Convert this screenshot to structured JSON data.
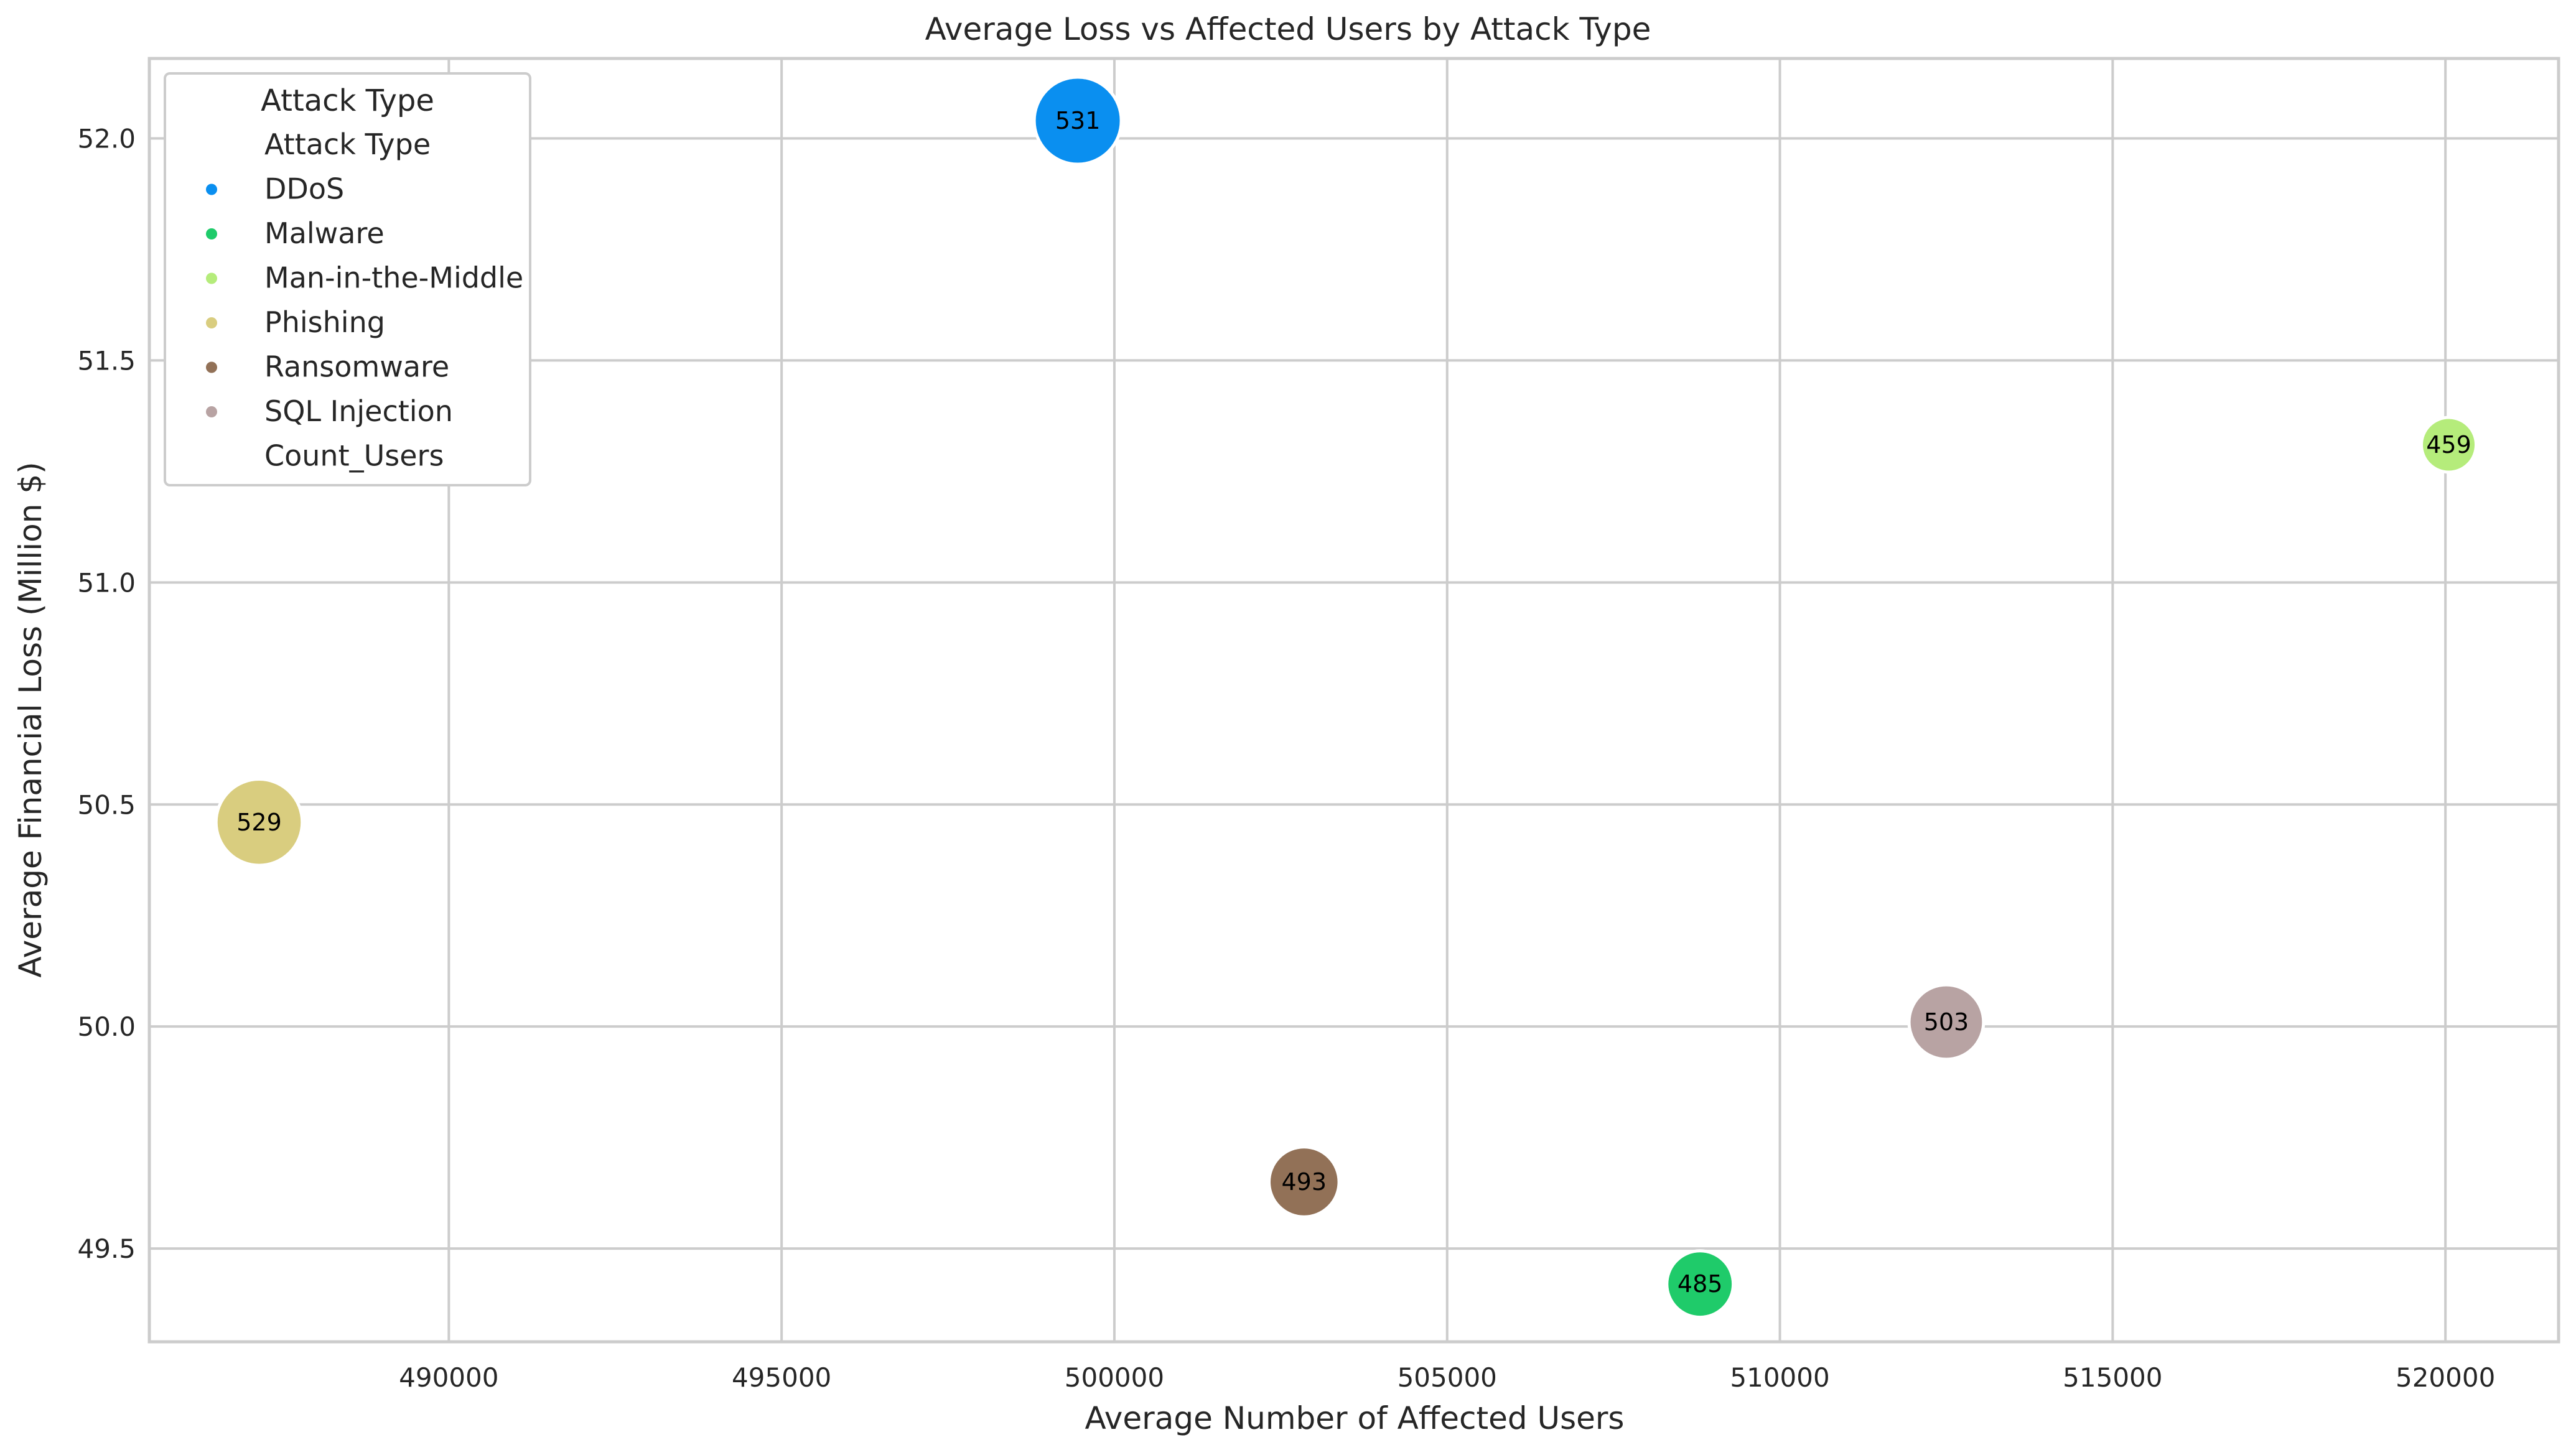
{
  "chart_data": {
    "type": "scatter",
    "title": "Average Loss vs Affected Users by Attack Type",
    "xlabel": "Average Number of Affected Users",
    "ylabel": "Average Financial Loss (Million $)",
    "xlim": [
      485500,
      521700
    ],
    "ylim": [
      49.29,
      52.18
    ],
    "xticks": [
      490000,
      495000,
      500000,
      505000,
      510000,
      515000,
      520000
    ],
    "xtick_labels": [
      "490000",
      "495000",
      "500000",
      "505000",
      "510000",
      "515000",
      "520000"
    ],
    "yticks": [
      49.5,
      50.0,
      50.5,
      51.0,
      51.5,
      52.0
    ],
    "ytick_labels": [
      "49.5",
      "50.0",
      "50.5",
      "51.0",
      "51.5",
      "52.0"
    ],
    "grid": true,
    "legend": {
      "title": "Attack Type",
      "placement": "top-left",
      "entries": [
        {
          "label": "Attack Type",
          "color": null
        },
        {
          "label": "DDoS",
          "color": "#0a8ff0"
        },
        {
          "label": "Malware",
          "color": "#1fcb6a"
        },
        {
          "label": "Man-in-the-Middle",
          "color": "#b5ec7b"
        },
        {
          "label": "Phishing",
          "color": "#d9cd7f"
        },
        {
          "label": "Ransomware",
          "color": "#927157"
        },
        {
          "label": "SQL Injection",
          "color": "#b8a3a3"
        },
        {
          "label": "Count_Users",
          "color": null
        }
      ]
    },
    "series": [
      {
        "name": "DDoS",
        "x": 499450,
        "y": 52.04,
        "count": 531,
        "label": "531",
        "color": "#0a8ff0"
      },
      {
        "name": "Malware",
        "x": 508800,
        "y": 49.42,
        "count": 485,
        "label": "485",
        "color": "#1fcb6a"
      },
      {
        "name": "Man-in-the-Middle",
        "x": 520050,
        "y": 51.31,
        "count": 459,
        "label": "459",
        "color": "#b5ec7b"
      },
      {
        "name": "Phishing",
        "x": 487150,
        "y": 50.46,
        "count": 529,
        "label": "529",
        "color": "#d9cd7f"
      },
      {
        "name": "Ransomware",
        "x": 502850,
        "y": 49.65,
        "count": 493,
        "label": "493",
        "color": "#927157"
      },
      {
        "name": "SQL Injection",
        "x": 512500,
        "y": 50.01,
        "count": 503,
        "label": "503",
        "color": "#b8a3a3"
      }
    ]
  }
}
